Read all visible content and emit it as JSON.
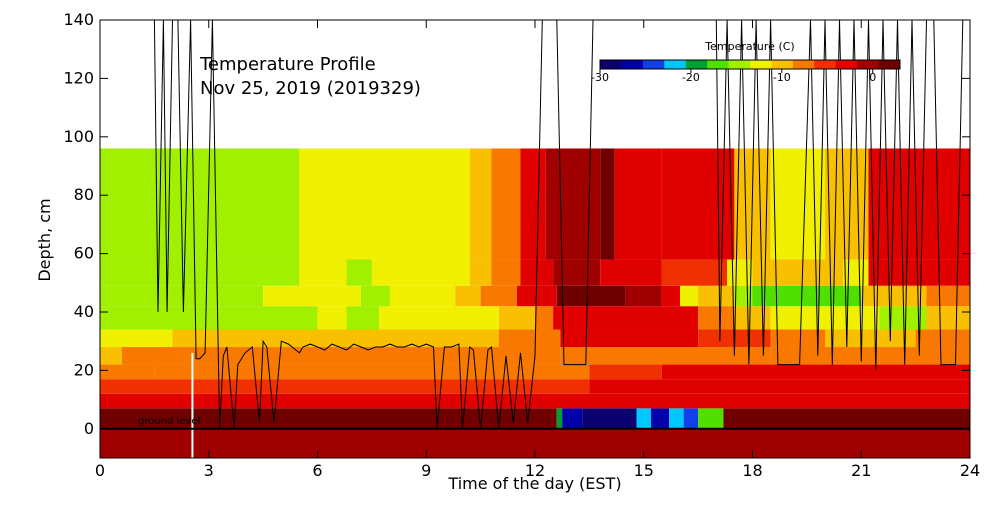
{
  "chart_data": {
    "type": "heatmap",
    "title": "Temperature Profile",
    "subtitle": "Nov 25, 2019 (2019329)",
    "xlabel": "Time of the day (EST)",
    "ylabel": "Depth, cm",
    "xlim": [
      0,
      24
    ],
    "ylim": [
      -10,
      140
    ],
    "x_ticks": [
      0,
      3,
      6,
      9,
      12,
      15,
      18,
      21,
      24
    ],
    "y_ticks": [
      0,
      20,
      40,
      60,
      80,
      100,
      120,
      140
    ],
    "grid": false,
    "ground_level_label": "ground level",
    "ground_level_depth": 0,
    "colorbar": {
      "title": "Temperature (C)",
      "placement": "top-right",
      "range": [
        -30,
        3
      ],
      "tick_values": [
        -30,
        -20,
        -10,
        0
      ],
      "tick_labels": [
        "-30",
        "-20",
        "-10",
        "0"
      ],
      "colors": [
        "#0a0070",
        "#0000a8",
        "#1040e8",
        "#00c8ff",
        "#00a030",
        "#50e000",
        "#a0f000",
        "#f0f000",
        "#f8c000",
        "#f87800",
        "#f03000",
        "#e00000",
        "#a00000",
        "#700000"
      ]
    },
    "cell_layers": [
      {
        "depth_range": [
          -10,
          0
        ],
        "segments": [
          {
            "x": [
              0,
              24
            ],
            "color": "#a00000"
          }
        ]
      },
      {
        "depth_range": [
          0,
          7
        ],
        "segments": [
          {
            "x": [
              0,
              12.6
            ],
            "color": "#700000"
          },
          {
            "x": [
              12.6,
              12.75
            ],
            "color": "#00a030"
          },
          {
            "x": [
              12.75,
              13.3
            ],
            "color": "#0000a8"
          },
          {
            "x": [
              13.3,
              14.8
            ],
            "color": "#0a0070"
          },
          {
            "x": [
              14.8,
              15.2
            ],
            "color": "#00c8ff"
          },
          {
            "x": [
              15.2,
              15.7
            ],
            "color": "#0000a8"
          },
          {
            "x": [
              15.7,
              16.1
            ],
            "color": "#00c8ff"
          },
          {
            "x": [
              16.1,
              16.5
            ],
            "color": "#1040e8"
          },
          {
            "x": [
              16.5,
              17.2
            ],
            "color": "#50e000"
          },
          {
            "x": [
              17.2,
              24
            ],
            "color": "#700000"
          }
        ]
      },
      {
        "depth_range": [
          7,
          12
        ],
        "segments": [
          {
            "x": [
              0,
              24
            ],
            "color": "#e00000"
          }
        ]
      },
      {
        "depth_range": [
          12,
          17
        ],
        "segments": [
          {
            "x": [
              0,
              13.5
            ],
            "color": "#f03000"
          },
          {
            "x": [
              13.5,
              24
            ],
            "color": "#e00000"
          }
        ]
      },
      {
        "depth_range": [
          17,
          22
        ],
        "segments": [
          {
            "x": [
              0,
              1.5
            ],
            "color": "#f87800"
          },
          {
            "x": [
              1.5,
              13.5
            ],
            "color": "#f87800"
          },
          {
            "x": [
              13.5,
              15.5
            ],
            "color": "#f03000"
          },
          {
            "x": [
              15.5,
              24
            ],
            "color": "#e00000"
          }
        ]
      },
      {
        "depth_range": [
          22,
          28
        ],
        "segments": [
          {
            "x": [
              0,
              0.6
            ],
            "color": "#f8c000"
          },
          {
            "x": [
              0.6,
              12.7
            ],
            "color": "#f87800"
          },
          {
            "x": [
              12.7,
              18.5
            ],
            "color": "#f87800"
          },
          {
            "x": [
              18.5,
              21.5
            ],
            "color": "#f87800"
          },
          {
            "x": [
              21.5,
              24
            ],
            "color": "#f87800"
          }
        ]
      },
      {
        "depth_range": [
          28,
          34
        ],
        "segments": [
          {
            "x": [
              0,
              2.0
            ],
            "color": "#f0f000"
          },
          {
            "x": [
              2.0,
              11.0
            ],
            "color": "#f8c000"
          },
          {
            "x": [
              11.0,
              12.7
            ],
            "color": "#f87800"
          },
          {
            "x": [
              12.7,
              16.5
            ],
            "color": "#e00000"
          },
          {
            "x": [
              16.5,
              18.5
            ],
            "color": "#f03000"
          },
          {
            "x": [
              18.5,
              20.0
            ],
            "color": "#f87800"
          },
          {
            "x": [
              20.0,
              22.5
            ],
            "color": "#f8c000"
          },
          {
            "x": [
              22.5,
              24
            ],
            "color": "#f87800"
          }
        ]
      },
      {
        "depth_range": [
          34,
          42
        ],
        "segments": [
          {
            "x": [
              0,
              6.0
            ],
            "color": "#a0f000"
          },
          {
            "x": [
              6.0,
              6.8
            ],
            "color": "#f0f000"
          },
          {
            "x": [
              6.8,
              7.7
            ],
            "color": "#a0f000"
          },
          {
            "x": [
              7.7,
              11.0
            ],
            "color": "#f0f000"
          },
          {
            "x": [
              11.0,
              12.0
            ],
            "color": "#f8c000"
          },
          {
            "x": [
              12.0,
              12.5
            ],
            "color": "#f87800"
          },
          {
            "x": [
              12.5,
              16.5
            ],
            "color": "#e00000"
          },
          {
            "x": [
              16.5,
              17.5
            ],
            "color": "#f87800"
          },
          {
            "x": [
              17.5,
              18.5
            ],
            "color": "#f8c000"
          },
          {
            "x": [
              18.5,
              21.5
            ],
            "color": "#f0f000"
          },
          {
            "x": [
              21.5,
              22.8
            ],
            "color": "#a0f000"
          },
          {
            "x": [
              22.8,
              24
            ],
            "color": "#f8c000"
          }
        ]
      },
      {
        "depth_range": [
          42,
          49
        ],
        "segments": [
          {
            "x": [
              0,
              4.5
            ],
            "color": "#a0f000"
          },
          {
            "x": [
              4.5,
              7.2
            ],
            "color": "#f0f000"
          },
          {
            "x": [
              7.2,
              8.0
            ],
            "color": "#a0f000"
          },
          {
            "x": [
              8.0,
              9.8
            ],
            "color": "#f0f000"
          },
          {
            "x": [
              9.8,
              10.5
            ],
            "color": "#f8c000"
          },
          {
            "x": [
              10.5,
              11.5
            ],
            "color": "#f87800"
          },
          {
            "x": [
              11.5,
              12.6
            ],
            "color": "#e00000"
          },
          {
            "x": [
              12.6,
              14.5
            ],
            "color": "#700000"
          },
          {
            "x": [
              14.5,
              15.5
            ],
            "color": "#a00000"
          },
          {
            "x": [
              15.5,
              16.0
            ],
            "color": "#e00000"
          },
          {
            "x": [
              16.0,
              16.5
            ],
            "color": "#f0f000"
          },
          {
            "x": [
              16.5,
              17.5
            ],
            "color": "#f8c000"
          },
          {
            "x": [
              17.5,
              18.0
            ],
            "color": "#a0f000"
          },
          {
            "x": [
              18.0,
              21.0
            ],
            "color": "#50e000"
          },
          {
            "x": [
              21.0,
              22.8
            ],
            "color": "#f8c000"
          },
          {
            "x": [
              22.8,
              24
            ],
            "color": "#f87800"
          }
        ]
      },
      {
        "depth_range": [
          49,
          58
        ],
        "segments": [
          {
            "x": [
              0,
              5.5
            ],
            "color": "#a0f000"
          },
          {
            "x": [
              5.5,
              6.8
            ],
            "color": "#f0f000"
          },
          {
            "x": [
              6.8,
              7.5
            ],
            "color": "#a0f000"
          },
          {
            "x": [
              7.5,
              10.2
            ],
            "color": "#f0f000"
          },
          {
            "x": [
              10.2,
              10.8
            ],
            "color": "#f8c000"
          },
          {
            "x": [
              10.8,
              11.6
            ],
            "color": "#f87800"
          },
          {
            "x": [
              11.6,
              12.5
            ],
            "color": "#e00000"
          },
          {
            "x": [
              12.5,
              13.8
            ],
            "color": "#a00000"
          },
          {
            "x": [
              13.8,
              15.5
            ],
            "color": "#e00000"
          },
          {
            "x": [
              15.5,
              17.3
            ],
            "color": "#f03000"
          },
          {
            "x": [
              17.3,
              18.0
            ],
            "color": "#f0f000"
          },
          {
            "x": [
              18.0,
              20.5
            ],
            "color": "#f8c000"
          },
          {
            "x": [
              20.5,
              21.2
            ],
            "color": "#f0f000"
          },
          {
            "x": [
              21.2,
              24
            ],
            "color": "#e00000"
          }
        ]
      },
      {
        "depth_range": [
          58,
          96
        ],
        "segments": [
          {
            "x": [
              0,
              5.5
            ],
            "color": "#a0f000"
          },
          {
            "x": [
              5.5,
              6.0
            ],
            "color": "#f0f000"
          },
          {
            "x": [
              6.0,
              10.2
            ],
            "color": "#f0f000"
          },
          {
            "x": [
              10.2,
              10.8
            ],
            "color": "#f8c000"
          },
          {
            "x": [
              10.8,
              11.6
            ],
            "color": "#f87800"
          },
          {
            "x": [
              11.6,
              12.3
            ],
            "color": "#e00000"
          },
          {
            "x": [
              12.3,
              13.8
            ],
            "color": "#a00000"
          },
          {
            "x": [
              13.8,
              14.2
            ],
            "color": "#700000"
          },
          {
            "x": [
              14.2,
              15.5
            ],
            "color": "#e00000"
          },
          {
            "x": [
              15.5,
              17.5
            ],
            "color": "#e00000"
          },
          {
            "x": [
              17.5,
              18.5
            ],
            "color": "#f8c000"
          },
          {
            "x": [
              18.5,
              20.0
            ],
            "color": "#f0f000"
          },
          {
            "x": [
              20.0,
              21.2
            ],
            "color": "#f8c000"
          },
          {
            "x": [
              21.2,
              24
            ],
            "color": "#e00000"
          }
        ]
      }
    ],
    "marker_line": {
      "x": 2.55,
      "color": "#ffffff"
    },
    "snow_depth_series": {
      "name": "",
      "x": [
        1.5,
        1.6,
        1.75,
        1.85,
        2.0,
        2.15,
        2.3,
        2.5,
        2.65,
        2.75,
        2.9,
        3.1,
        3.3,
        3.4,
        3.5,
        3.7,
        3.8,
        4.0,
        4.2,
        4.4,
        4.5,
        4.6,
        4.8,
        5.0,
        5.2,
        5.3,
        5.5,
        5.6,
        5.8,
        6.0,
        6.2,
        6.4,
        6.6,
        6.8,
        7.0,
        7.2,
        7.4,
        7.6,
        7.8,
        8.0,
        8.2,
        8.4,
        8.6,
        8.8,
        9.0,
        9.2,
        9.3,
        9.5,
        9.7,
        9.9,
        10.0,
        10.2,
        10.3,
        10.5,
        10.7,
        10.8,
        11.0,
        11.2,
        11.4,
        11.6,
        11.8,
        12.0,
        12.2,
        12.4,
        12.6,
        12.8,
        13.0,
        13.2,
        13.4,
        13.6,
        13.7
      ],
      "y": [
        140,
        40,
        140,
        40,
        140,
        140,
        40,
        140,
        24,
        24,
        26,
        140,
        0,
        25,
        28,
        0,
        22,
        26,
        28,
        2,
        30,
        28,
        2,
        30,
        29,
        28,
        26,
        28,
        29,
        28,
        27,
        29,
        28,
        27,
        29,
        28,
        27,
        28,
        28,
        29,
        28,
        28,
        29,
        28,
        29,
        28,
        0,
        28,
        28,
        29,
        0,
        28,
        27,
        0,
        27,
        28,
        0,
        25,
        2,
        26,
        2,
        25,
        140,
        140,
        140,
        22,
        22,
        22,
        22,
        140,
        140
      ]
    },
    "snow_depth_series_right": {
      "x": [
        17.0,
        17.1,
        17.3,
        17.5,
        17.7,
        17.9,
        18.1,
        18.3,
        18.5,
        18.7,
        19.0,
        19.3,
        19.6,
        19.8,
        20.0,
        20.2,
        20.4,
        20.6,
        20.8,
        21.0,
        21.2,
        21.4,
        21.6,
        21.8,
        22.0,
        22.2,
        22.4,
        22.6,
        22.8,
        23.0,
        23.2,
        23.4,
        23.6,
        23.8,
        24.0
      ],
      "y": [
        140,
        30,
        140,
        25,
        140,
        22,
        140,
        25,
        140,
        22,
        22,
        22,
        140,
        25,
        140,
        22,
        140,
        28,
        140,
        23,
        140,
        20,
        140,
        30,
        140,
        22,
        140,
        25,
        140,
        140,
        22,
        22,
        22,
        140,
        140
      ]
    }
  }
}
